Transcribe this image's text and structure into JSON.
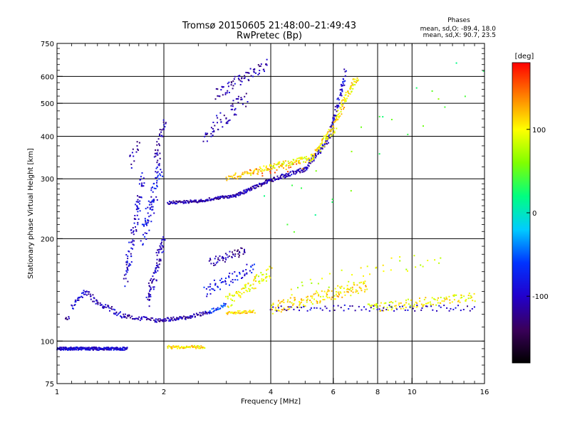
{
  "chart_data": {
    "type": "scatter",
    "title": "Tromsø 20150605 21:48:00–21:49:43",
    "subtitle": "RwPretec (Bp)",
    "xlabel": "Frequency [MHz]",
    "ylabel": "Stationary phase Virtual Height [km]",
    "x_scale": "log",
    "y_scale": "log",
    "xlim": [
      1,
      16
    ],
    "ylim": [
      75,
      750
    ],
    "xticks": [
      1,
      2,
      4,
      6,
      8,
      10,
      16
    ],
    "xtick_labels": [
      "1",
      "2",
      "4",
      "6",
      "8",
      "10",
      "16"
    ],
    "x_gridlines": [
      2,
      4,
      6,
      8,
      10
    ],
    "yticks": [
      75,
      100,
      200,
      300,
      400,
      500,
      600,
      750
    ],
    "ytick_labels": [
      "75",
      "100",
      "200",
      "300",
      "400",
      "500",
      "600",
      "750"
    ],
    "y_gridlines": [
      100,
      200,
      300,
      400,
      500,
      600
    ],
    "grid": true,
    "phase_info": {
      "heading": "Phases",
      "line_o": "mean, sd,O: -89.4, 18.0",
      "line_x": "mean, sd,X:  90.7, 23.5"
    },
    "colorbar": {
      "unit_label": "[deg]",
      "range": [
        -180,
        180
      ],
      "ticks": [
        100,
        0,
        -100
      ],
      "tick_labels": [
        "100",
        "0",
        "-100"
      ],
      "colors": [
        "#000000",
        "#3a005a",
        "#2200cc",
        "#0033ff",
        "#00ccff",
        "#00ff80",
        "#80ff00",
        "#ffff00",
        "#ff8000",
        "#ff0000"
      ]
    },
    "traces": [
      {
        "x": [
          1.0,
          1.58
        ],
        "y": [
          95,
          95
        ],
        "phase": -95,
        "n": 240,
        "spread": 0.01
      },
      {
        "x": [
          2.05,
          2.6
        ],
        "y": [
          96,
          96
        ],
        "phase": 110,
        "n": 60,
        "spread": 0.01
      },
      {
        "x": [
          1.06,
          1.08
        ],
        "y": [
          116,
          117
        ],
        "phase": -110,
        "n": 6,
        "spread": 0.01
      },
      {
        "x": [
          1.1,
          1.2
        ],
        "y": [
          125,
          140
        ],
        "phase": -100,
        "n": 25,
        "spread": 0.02
      },
      {
        "x": [
          1.2,
          1.3
        ],
        "y": [
          140,
          130
        ],
        "phase": -105,
        "n": 20,
        "spread": 0.02
      },
      {
        "x": [
          1.3,
          1.55
        ],
        "y": [
          130,
          118
        ],
        "phase": -105,
        "n": 40,
        "spread": 0.02
      },
      {
        "x": [
          1.55,
          1.9
        ],
        "y": [
          118,
          115
        ],
        "phase": -110,
        "n": 40,
        "spread": 0.015
      },
      {
        "x": [
          1.9,
          2.3
        ],
        "y": [
          115,
          117
        ],
        "phase": -110,
        "n": 50,
        "spread": 0.012
      },
      {
        "x": [
          2.3,
          2.7
        ],
        "y": [
          117,
          122
        ],
        "phase": -110,
        "n": 40,
        "spread": 0.012
      },
      {
        "x": [
          2.7,
          3.0
        ],
        "y": [
          122,
          128
        ],
        "phase": -60,
        "n": 25,
        "spread": 0.015
      },
      {
        "x": [
          3.0,
          3.6
        ],
        "y": [
          121,
          122
        ],
        "phase": 110,
        "n": 40,
        "spread": 0.01
      },
      {
        "x": [
          2.05,
          2.5
        ],
        "y": [
          255,
          258
        ],
        "phase": -110,
        "n": 60,
        "spread": 0.01
      },
      {
        "x": [
          2.5,
          3.2
        ],
        "y": [
          258,
          268
        ],
        "phase": -110,
        "n": 80,
        "spread": 0.01
      },
      {
        "x": [
          3.2,
          4.0
        ],
        "y": [
          268,
          298
        ],
        "phase": -110,
        "n": 80,
        "spread": 0.012
      },
      {
        "x": [
          4.0,
          5.0
        ],
        "y": [
          298,
          320
        ],
        "phase": -110,
        "n": 70,
        "spread": 0.015
      },
      {
        "x": [
          5.0,
          5.8
        ],
        "y": [
          320,
          390
        ],
        "phase": -105,
        "n": 60,
        "spread": 0.02
      },
      {
        "x": [
          5.8,
          6.2
        ],
        "y": [
          390,
          500
        ],
        "phase": -100,
        "n": 40,
        "spread": 0.025
      },
      {
        "x": [
          6.2,
          6.5
        ],
        "y": [
          500,
          620
        ],
        "phase": -95,
        "n": 30,
        "spread": 0.03
      },
      {
        "x": [
          3.0,
          4.0
        ],
        "y": [
          300,
          325
        ],
        "phase": 110,
        "n": 60,
        "spread": 0.02
      },
      {
        "x": [
          4.0,
          5.2
        ],
        "y": [
          325,
          345
        ],
        "phase": 100,
        "n": 70,
        "spread": 0.02
      },
      {
        "x": [
          5.2,
          6.0
        ],
        "y": [
          345,
          420
        ],
        "phase": 105,
        "n": 60,
        "spread": 0.03
      },
      {
        "x": [
          6.0,
          6.5
        ],
        "y": [
          420,
          520
        ],
        "phase": 110,
        "n": 45,
        "spread": 0.03
      },
      {
        "x": [
          6.5,
          7.0
        ],
        "y": [
          520,
          600
        ],
        "phase": 105,
        "n": 35,
        "spread": 0.03
      },
      {
        "x": [
          3.5,
          5.0
        ],
        "y": [
          310,
          330
        ],
        "phase": 140,
        "n": 30,
        "spread": 0.03
      },
      {
        "x": [
          1.55,
          1.75
        ],
        "y": [
          150,
          300
        ],
        "phase": -100,
        "n": 90,
        "spread": 0.05
      },
      {
        "x": [
          1.75,
          1.95
        ],
        "y": [
          200,
          320
        ],
        "phase": -90,
        "n": 80,
        "spread": 0.06
      },
      {
        "x": [
          1.8,
          2.0
        ],
        "y": [
          130,
          200
        ],
        "phase": -105,
        "n": 80,
        "spread": 0.05
      },
      {
        "x": [
          1.9,
          2.0
        ],
        "y": [
          330,
          450
        ],
        "phase": -110,
        "n": 40,
        "spread": 0.05
      },
      {
        "x": [
          1.6,
          1.7
        ],
        "y": [
          330,
          390
        ],
        "phase": -110,
        "n": 15,
        "spread": 0.05
      },
      {
        "x": [
          2.6,
          3.4
        ],
        "y": [
          400,
          520
        ],
        "phase": -110,
        "n": 60,
        "spread": 0.06
      },
      {
        "x": [
          2.8,
          3.9
        ],
        "y": [
          530,
          650
        ],
        "phase": -110,
        "n": 70,
        "spread": 0.04
      },
      {
        "x": [
          2.7,
          3.4
        ],
        "y": [
          170,
          185
        ],
        "phase": -115,
        "n": 50,
        "spread": 0.03
      },
      {
        "x": [
          2.6,
          3.6
        ],
        "y": [
          140,
          165
        ],
        "phase": -80,
        "n": 60,
        "spread": 0.04
      },
      {
        "x": [
          3.0,
          4.0
        ],
        "y": [
          130,
          160
        ],
        "phase": 100,
        "n": 80,
        "spread": 0.04
      },
      {
        "x": [
          4.0,
          7.5
        ],
        "y": [
          125,
          145
        ],
        "phase": 110,
        "n": 150,
        "spread": 0.04
      },
      {
        "x": [
          7.5,
          15.0
        ],
        "y": [
          125,
          135
        ],
        "phase": 100,
        "n": 120,
        "spread": 0.03
      },
      {
        "x": [
          4.0,
          15.0
        ],
        "y": [
          125,
          125
        ],
        "phase": -100,
        "n": 80,
        "spread": 0.02
      },
      {
        "x": [
          4.5,
          12.0
        ],
        "y": [
          140,
          180
        ],
        "phase": 90,
        "n": 40,
        "spread": 0.06
      },
      {
        "x": [
          4.0,
          15.0
        ],
        "y": [
          220,
          600
        ],
        "phase": 40,
        "n": 25,
        "spread": 0.2
      }
    ]
  }
}
